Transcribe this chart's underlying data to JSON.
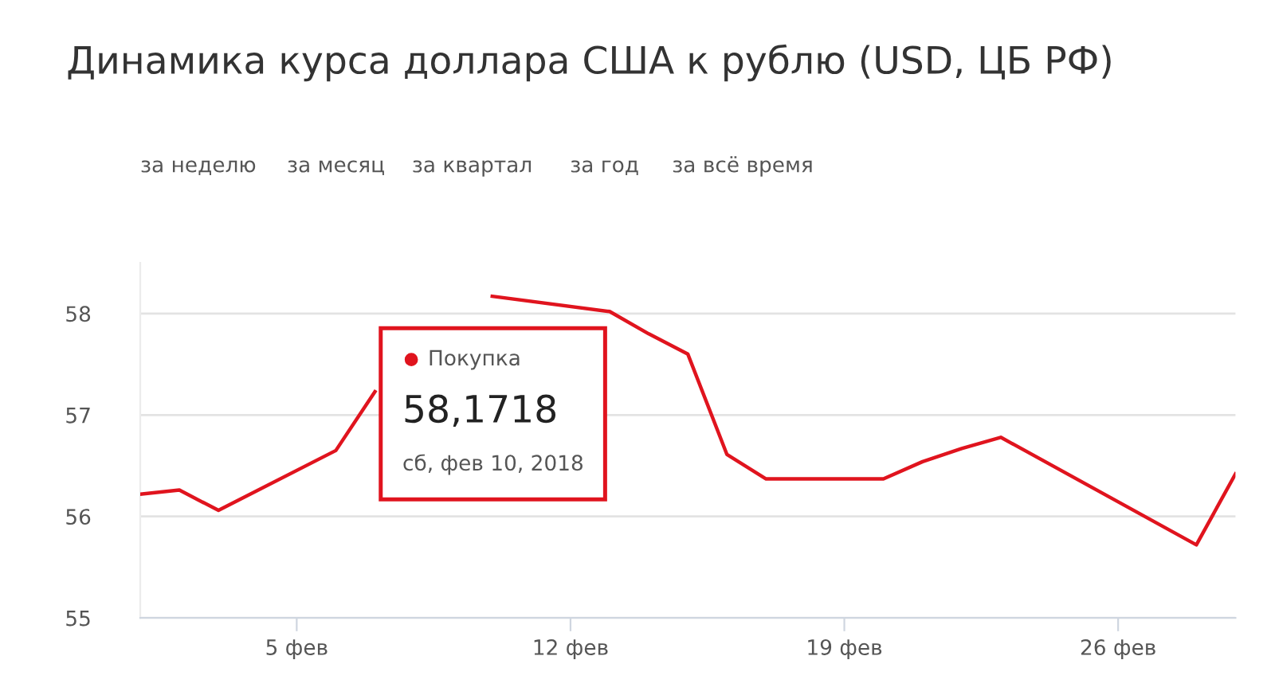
{
  "chart_data": {
    "type": "line",
    "title": "Динамика курса доллара США к рублю (USD, ЦБ РФ)",
    "annotations": [
      "за неделю",
      "за месяц",
      "за квартал",
      "за год",
      "за всё время",
      {
        "text": "58,1718\nсб, фев 10, 2018",
        "x": "2018-02-10",
        "y": 58.17
      }
    ],
    "x": [
      "2018-02-01",
      "2018-02-02",
      "2018-02-03",
      "2018-02-06",
      "2018-02-07",
      "2018-02-08",
      "2018-02-09",
      "2018-02-10",
      "2018-02-13",
      "2018-02-14",
      "2018-02-15",
      "2018-02-16",
      "2018-02-17",
      "2018-02-20",
      "2018-02-21",
      "2018-02-22",
      "2018-02-23",
      "2018-02-28",
      "2018-03-01"
    ],
    "series": [
      {
        "name": "Покупка",
        "color": "#e0141e",
        "values": [
          56.22,
          56.26,
          56.06,
          56.65,
          57.23,
          null,
          null,
          58.17,
          58.02,
          57.8,
          57.6,
          56.61,
          56.37,
          56.37,
          56.54,
          56.67,
          56.78,
          55.72,
          56.42
        ]
      }
    ],
    "xlim": [
      "2018-02-01",
      "2018-03-01"
    ],
    "xticks": [
      {
        "value": "2018-02-05",
        "label": "5 фев"
      },
      {
        "value": "2018-02-12",
        "label": "12 фев"
      },
      {
        "value": "2018-02-19",
        "label": "19 фев"
      },
      {
        "value": "2018-02-26",
        "label": "26 фев"
      }
    ],
    "ylim": [
      55,
      58.5
    ],
    "yticks": [
      55,
      56,
      57,
      58
    ],
    "grid": "y",
    "marker": "none",
    "line_style": "solid"
  }
}
